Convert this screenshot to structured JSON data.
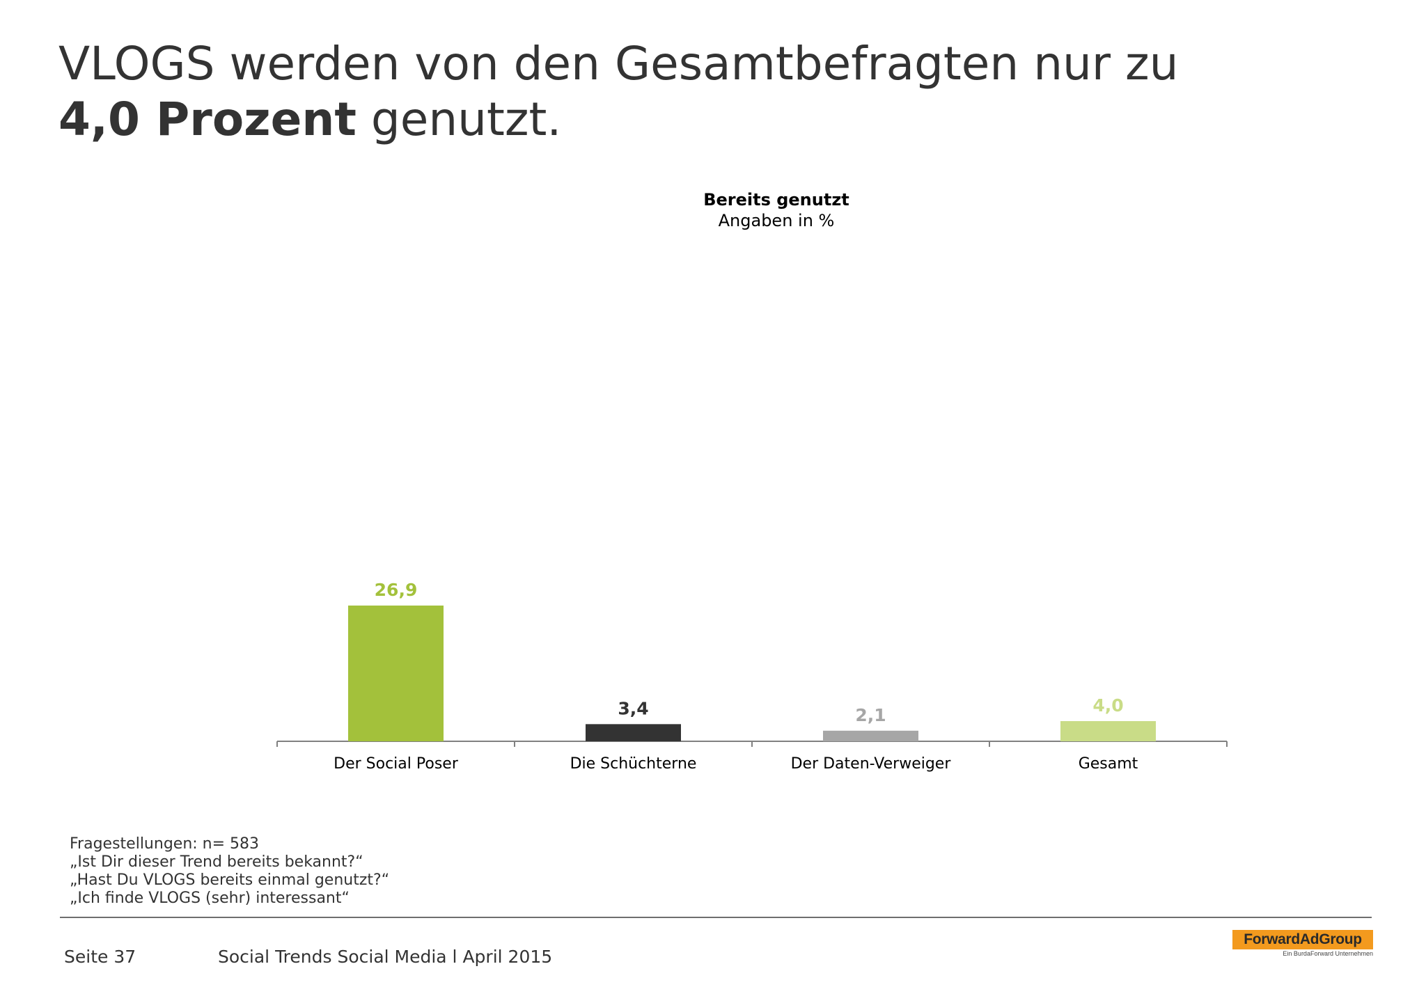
{
  "headline": {
    "line1": "VLOGS werden von den Gesamtbefragten nur zu",
    "line2_bold": "4,0 Prozent",
    "line2_rest": " genutzt."
  },
  "chart_data": {
    "type": "bar",
    "title": "Bereits genutzt",
    "subtitle": "Angaben in %",
    "categories": [
      "Der Social Poser",
      "Die Schüchterne",
      "Der Daten-Verweiger",
      "Gesamt"
    ],
    "values": [
      26.9,
      3.4,
      2.1,
      4.0
    ],
    "value_labels": [
      "26,9",
      "3,4",
      "2,1",
      "4,0"
    ],
    "colors": [
      "#a3c13b",
      "#333333",
      "#a6a6a6",
      "#c9dc87"
    ],
    "ylim": [
      0,
      100
    ],
    "grid": false,
    "legend": "none"
  },
  "notes": {
    "lines": [
      "Fragestellungen: n= 583",
      "„Ist Dir dieser Trend bereits bekannt?“",
      "„Hast Du VLOGS bereits einmal genutzt?“",
      "„Ich finde VLOGS (sehr) interessant“"
    ]
  },
  "footer": {
    "page": "Seite 37",
    "source": "Social Trends Social Media l April 2015"
  },
  "logo": {
    "brand": "ForwardAdGroup",
    "tagline": "Ein BurdaForward Unternehmen",
    "color": "#f39a1e"
  }
}
